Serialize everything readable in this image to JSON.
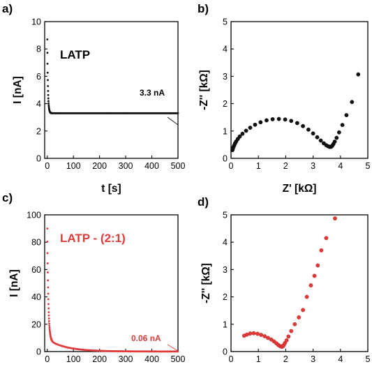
{
  "chart_data": [
    {
      "panel": "a)",
      "type": "scatter",
      "annotation": "LATP",
      "value_label": "3.3 nA",
      "xlabel": "t [s]",
      "ylabel": "I [nA]",
      "xlim": [
        -10,
        500
      ],
      "ylim": [
        0,
        10
      ],
      "xticks": [
        0,
        100,
        200,
        300,
        400,
        500
      ],
      "yticks": [
        0,
        2,
        4,
        6,
        8,
        10
      ],
      "color": "#111111",
      "decay": {
        "start": 8.7,
        "asymptote": 3.3,
        "tau": 2.5,
        "t_end": 500
      }
    },
    {
      "panel": "b)",
      "type": "scatter",
      "xlabel": "Z' [kΩ]",
      "ylabel": "-Z'' [kΩ]",
      "xlim": [
        0,
        5
      ],
      "ylim": [
        0,
        5
      ],
      "xticks": [
        0,
        1,
        2,
        3,
        4,
        5
      ],
      "yticks": [
        0,
        1,
        2,
        3,
        4,
        5
      ],
      "color": "#111111",
      "x": [
        0.05,
        0.07,
        0.09,
        0.12,
        0.15,
        0.19,
        0.25,
        0.32,
        0.42,
        0.55,
        0.7,
        0.88,
        1.08,
        1.3,
        1.52,
        1.75,
        1.98,
        2.2,
        2.42,
        2.63,
        2.83,
        3.0,
        3.15,
        3.28,
        3.39,
        3.48,
        3.55,
        3.6,
        3.64,
        3.67,
        3.7,
        3.74,
        3.79,
        3.86,
        3.95,
        4.07,
        4.22,
        4.42,
        4.65
      ],
      "y": [
        0.3,
        0.36,
        0.42,
        0.48,
        0.55,
        0.62,
        0.71,
        0.8,
        0.9,
        1.01,
        1.12,
        1.23,
        1.32,
        1.39,
        1.43,
        1.44,
        1.42,
        1.37,
        1.29,
        1.18,
        1.05,
        0.91,
        0.77,
        0.65,
        0.55,
        0.48,
        0.44,
        0.42,
        0.42,
        0.43,
        0.46,
        0.52,
        0.61,
        0.75,
        0.95,
        1.22,
        1.58,
        2.06,
        3.07
      ]
    },
    {
      "panel": "c)",
      "type": "scatter",
      "annotation": "LATP - (2:1)",
      "value_label": "0.06 nA",
      "xlabel": "",
      "ylabel": "I [nA]",
      "xlim": [
        -10,
        500
      ],
      "ylim": [
        0,
        100
      ],
      "xticks": [
        0,
        100,
        200,
        300,
        400,
        500
      ],
      "yticks": [
        0,
        20,
        40,
        60,
        80,
        100
      ],
      "color": "#e03a3a",
      "decay": {
        "start": 90,
        "asymptote": 0.06,
        "tau": 4,
        "tau2": 70,
        "frac2": 0.1,
        "t_end": 500
      }
    },
    {
      "panel": "d)",
      "type": "scatter",
      "xlabel": "",
      "ylabel": "-Z'' [kΩ]",
      "xlim": [
        0,
        5
      ],
      "ylim": [
        0,
        5
      ],
      "xticks": [
        0,
        1,
        2,
        3,
        4,
        5
      ],
      "yticks": [
        0,
        1,
        2,
        3,
        4,
        5
      ],
      "color": "#e03a3a",
      "x": [
        0.48,
        0.58,
        0.7,
        0.83,
        0.97,
        1.1,
        1.23,
        1.35,
        1.47,
        1.57,
        1.66,
        1.73,
        1.79,
        1.84,
        1.87,
        1.9,
        1.93,
        1.97,
        2.03,
        2.1,
        2.2,
        2.33,
        2.48,
        2.63,
        2.77,
        2.92,
        3.05,
        3.17,
        3.3,
        3.48,
        3.8
      ],
      "y": [
        0.58,
        0.62,
        0.66,
        0.67,
        0.65,
        0.61,
        0.56,
        0.5,
        0.44,
        0.37,
        0.3,
        0.24,
        0.2,
        0.18,
        0.18,
        0.2,
        0.24,
        0.31,
        0.41,
        0.55,
        0.75,
        1.0,
        1.25,
        1.52,
        2.0,
        2.42,
        2.77,
        3.15,
        3.7,
        4.15,
        4.87
      ]
    }
  ]
}
